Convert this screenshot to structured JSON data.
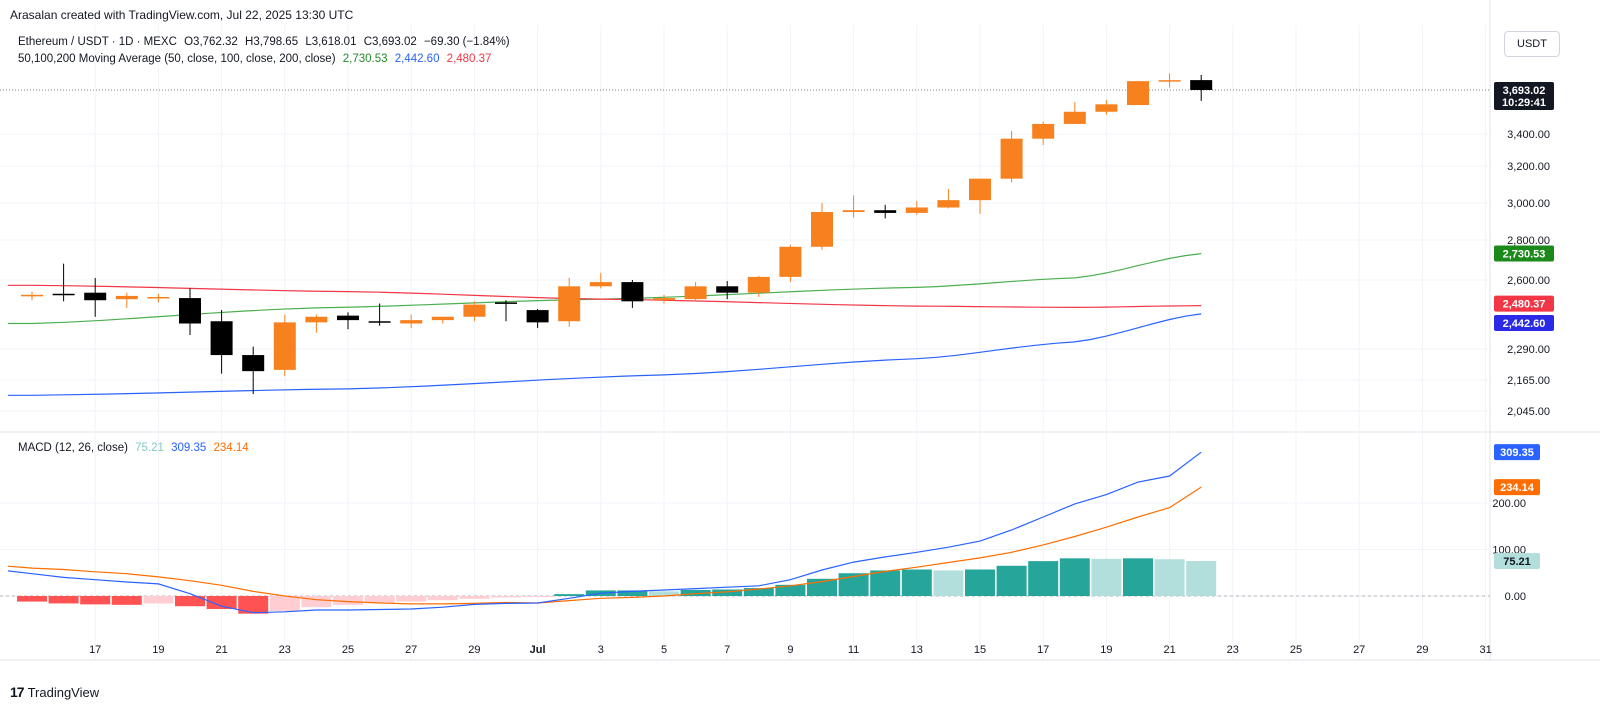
{
  "credit": "Arasalan created with TradingView.com, Jul 22, 2025 13:30 UTC",
  "currency": "USDT",
  "footer_brand": "TradingView",
  "legend": {
    "symbol": "Ethereum / USDT · 1D · MEXC",
    "open": "O3,762.32",
    "high": "H3,798.65",
    "low": "L3,618.01",
    "close": "C3,693.02",
    "change": "−69.30 (−1.84%)",
    "ma_label": "50,100,200 Moving Average (50, close, 100, close, 200, close)",
    "ma50": "2,730.53",
    "ma100": "2,442.60",
    "ma200": "2,480.37",
    "macd_label": "MACD (12, 26, close)",
    "macd_hist": "75.21",
    "macd_line": "309.35",
    "macd_signal": "234.14"
  },
  "colors": {
    "up": "#F7811E",
    "down": "#000000",
    "ma50": "#4CAF50",
    "ma100": "#2962FF",
    "ma200": "#F23645",
    "macd": "#2962FF",
    "signal": "#FF6D00",
    "hist_pos": "#26A69A",
    "hist_pos_light": "#B2DFDB",
    "hist_neg": "#FF5252",
    "hist_neg_light": "#FFCDD2"
  },
  "chart_data": [
    {
      "type": "candlestick",
      "title": "Ethereum / USDT · 1D · MEXC",
      "x_ticks": [
        "17",
        "19",
        "21",
        "23",
        "25",
        "27",
        "29",
        "Jul",
        "3",
        "5",
        "7",
        "9",
        "11",
        "13",
        "15",
        "17",
        "19",
        "21",
        "23",
        "25",
        "27",
        "29",
        "31"
      ],
      "y_ticks": [
        "2,045.00",
        "2,165.00",
        "2,290.00",
        "2,600.00",
        "2,800.00",
        "3,000.00",
        "3,200.00",
        "3,400.00"
      ],
      "price_tags": [
        {
          "label": "3,693.02",
          "sub": "10:29:41",
          "value": 3693.02,
          "kind": "last"
        },
        {
          "label": "2,730.53",
          "value": 2730.53,
          "kind": "ma50"
        },
        {
          "label": "2,480.37",
          "value": 2480.37,
          "kind": "ma200"
        },
        {
          "label": "2,442.60",
          "value": 2442.6,
          "kind": "ma100"
        }
      ],
      "candles": [
        {
          "date": "Jun 15",
          "o": 2525,
          "h": 2545,
          "l": 2505,
          "c": 2530
        },
        {
          "date": "Jun 16",
          "o": 2535,
          "h": 2680,
          "l": 2500,
          "c": 2530
        },
        {
          "date": "Jun 17",
          "o": 2540,
          "h": 2610,
          "l": 2430,
          "c": 2505
        },
        {
          "date": "Jun 18",
          "o": 2510,
          "h": 2540,
          "l": 2470,
          "c": 2525
        },
        {
          "date": "Jun 19",
          "o": 2520,
          "h": 2535,
          "l": 2495,
          "c": 2520
        },
        {
          "date": "Jun 20",
          "o": 2515,
          "h": 2560,
          "l": 2350,
          "c": 2400
        },
        {
          "date": "Jun 21",
          "o": 2410,
          "h": 2460,
          "l": 2190,
          "c": 2265
        },
        {
          "date": "Jun 22",
          "o": 2265,
          "h": 2300,
          "l": 2110,
          "c": 2200
        },
        {
          "date": "Jun 23",
          "o": 2205,
          "h": 2440,
          "l": 2180,
          "c": 2405
        },
        {
          "date": "Jun 24",
          "o": 2405,
          "h": 2440,
          "l": 2360,
          "c": 2430
        },
        {
          "date": "Jun 25",
          "o": 2435,
          "h": 2450,
          "l": 2375,
          "c": 2415
        },
        {
          "date": "Jun 26",
          "o": 2410,
          "h": 2490,
          "l": 2390,
          "c": 2405
        },
        {
          "date": "Jun 27",
          "o": 2400,
          "h": 2440,
          "l": 2380,
          "c": 2415
        },
        {
          "date": "Jun 28",
          "o": 2415,
          "h": 2430,
          "l": 2400,
          "c": 2430
        },
        {
          "date": "Jun 29",
          "o": 2430,
          "h": 2500,
          "l": 2410,
          "c": 2485
        },
        {
          "date": "Jun 30",
          "o": 2495,
          "h": 2505,
          "l": 2410,
          "c": 2490
        },
        {
          "date": "Jul 1",
          "o": 2460,
          "h": 2465,
          "l": 2380,
          "c": 2405
        },
        {
          "date": "Jul 2",
          "o": 2410,
          "h": 2610,
          "l": 2385,
          "c": 2570
        },
        {
          "date": "Jul 3",
          "o": 2570,
          "h": 2635,
          "l": 2560,
          "c": 2590
        },
        {
          "date": "Jul 4",
          "o": 2590,
          "h": 2600,
          "l": 2470,
          "c": 2500
        },
        {
          "date": "Jul 5",
          "o": 2505,
          "h": 2530,
          "l": 2490,
          "c": 2515
        },
        {
          "date": "Jul 6",
          "o": 2510,
          "h": 2590,
          "l": 2500,
          "c": 2570
        },
        {
          "date": "Jul 7",
          "o": 2570,
          "h": 2595,
          "l": 2510,
          "c": 2540
        },
        {
          "date": "Jul 8",
          "o": 2540,
          "h": 2620,
          "l": 2520,
          "c": 2615
        },
        {
          "date": "Jul 9",
          "o": 2615,
          "h": 2775,
          "l": 2590,
          "c": 2765
        },
        {
          "date": "Jul 10",
          "o": 2765,
          "h": 3000,
          "l": 2750,
          "c": 2950
        },
        {
          "date": "Jul 11",
          "o": 2950,
          "h": 3040,
          "l": 2920,
          "c": 2960
        },
        {
          "date": "Jul 12",
          "o": 2960,
          "h": 2990,
          "l": 2915,
          "c": 2945
        },
        {
          "date": "Jul 13",
          "o": 2945,
          "h": 3010,
          "l": 2935,
          "c": 2975
        },
        {
          "date": "Jul 14",
          "o": 2975,
          "h": 3075,
          "l": 2970,
          "c": 3015
        },
        {
          "date": "Jul 15",
          "o": 3015,
          "h": 3130,
          "l": 2940,
          "c": 3130
        },
        {
          "date": "Jul 16",
          "o": 3130,
          "h": 3420,
          "l": 3110,
          "c": 3370
        },
        {
          "date": "Jul 17",
          "o": 3370,
          "h": 3480,
          "l": 3330,
          "c": 3465
        },
        {
          "date": "Jul 18",
          "o": 3465,
          "h": 3610,
          "l": 3465,
          "c": 3545
        },
        {
          "date": "Jul 19",
          "o": 3545,
          "h": 3625,
          "l": 3525,
          "c": 3595
        },
        {
          "date": "Jul 20",
          "o": 3590,
          "h": 3755,
          "l": 3590,
          "c": 3755
        },
        {
          "date": "Jul 21",
          "o": 3755,
          "h": 3810,
          "l": 3710,
          "c": 3762
        },
        {
          "date": "Jul 22",
          "o": 3762.32,
          "h": 3798.65,
          "l": 3618.01,
          "c": 3693.02
        }
      ],
      "moving_averages": [
        {
          "name": "MA50",
          "anchors": [
            [
              0,
              2400
            ],
            [
              9,
              2470
            ],
            [
              18,
              2510
            ],
            [
              28,
              2565
            ],
            [
              33,
              2610
            ],
            [
              37,
              2730.53
            ]
          ]
        },
        {
          "name": "MA100",
          "anchors": [
            [
              0,
              2105
            ],
            [
              10,
              2130
            ],
            [
              20,
              2185
            ],
            [
              28,
              2250
            ],
            [
              33,
              2320
            ],
            [
              37,
              2442.6
            ]
          ]
        },
        {
          "name": "MA200",
          "anchors": [
            [
              0,
              2575
            ],
            [
              10,
              2545
            ],
            [
              18,
              2510
            ],
            [
              28,
              2478
            ],
            [
              33,
              2472
            ],
            [
              37,
              2480.37
            ]
          ]
        }
      ]
    },
    {
      "type": "bar",
      "title": "MACD (12, 26, close)",
      "y_ticks": [
        "0.00",
        "100.00",
        "200.00"
      ],
      "value_tags": [
        {
          "label": "309.35",
          "value": 309.35,
          "kind": "macd"
        },
        {
          "label": "234.14",
          "value": 234.14,
          "kind": "signal"
        },
        {
          "label": "75.21",
          "value": 75.21,
          "kind": "hist"
        }
      ],
      "histogram": [
        -12,
        -16,
        -18,
        -19,
        -16,
        -22,
        -28,
        -38,
        -32,
        -24,
        -19,
        -15,
        -12,
        -9,
        -6,
        -3,
        -1,
        4,
        12,
        12,
        10,
        13,
        14,
        17,
        24,
        37,
        49,
        55,
        57,
        55,
        57,
        65,
        75,
        81,
        80,
        81,
        79,
        75.21
      ],
      "macd_line": [
        48,
        40,
        35,
        30,
        26,
        5,
        -22,
        -36,
        -34,
        -30,
        -30,
        -29,
        -28,
        -24,
        -18,
        -16,
        -15,
        -5,
        6,
        10,
        13,
        16,
        19,
        22,
        35,
        56,
        73,
        84,
        94,
        105,
        118,
        142,
        170,
        198,
        218,
        245,
        258,
        309.35
      ],
      "signal_line": [
        60,
        57,
        52,
        48,
        41,
        33,
        23,
        10,
        0,
        -8,
        -12,
        -15,
        -17,
        -17,
        -16,
        -14,
        -15,
        -10,
        -5,
        -3,
        0,
        5,
        9,
        15,
        22,
        31,
        42,
        53,
        62,
        72,
        82,
        94,
        110,
        128,
        148,
        170,
        190,
        234.14
      ]
    }
  ]
}
